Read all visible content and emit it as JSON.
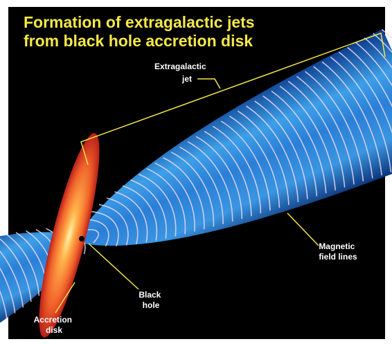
{
  "title": {
    "lines": [
      "Formation of extragalactic jets",
      "from black hole accretion disk"
    ]
  },
  "labels": [
    {
      "lines": [
        "Extragalactic",
        "jet"
      ]
    },
    {
      "lines": [
        "Magnetic",
        "field lines"
      ]
    },
    {
      "lines": [
        "Black",
        "hole"
      ]
    },
    {
      "lines": [
        "Accretion",
        "disk"
      ]
    }
  ]
}
